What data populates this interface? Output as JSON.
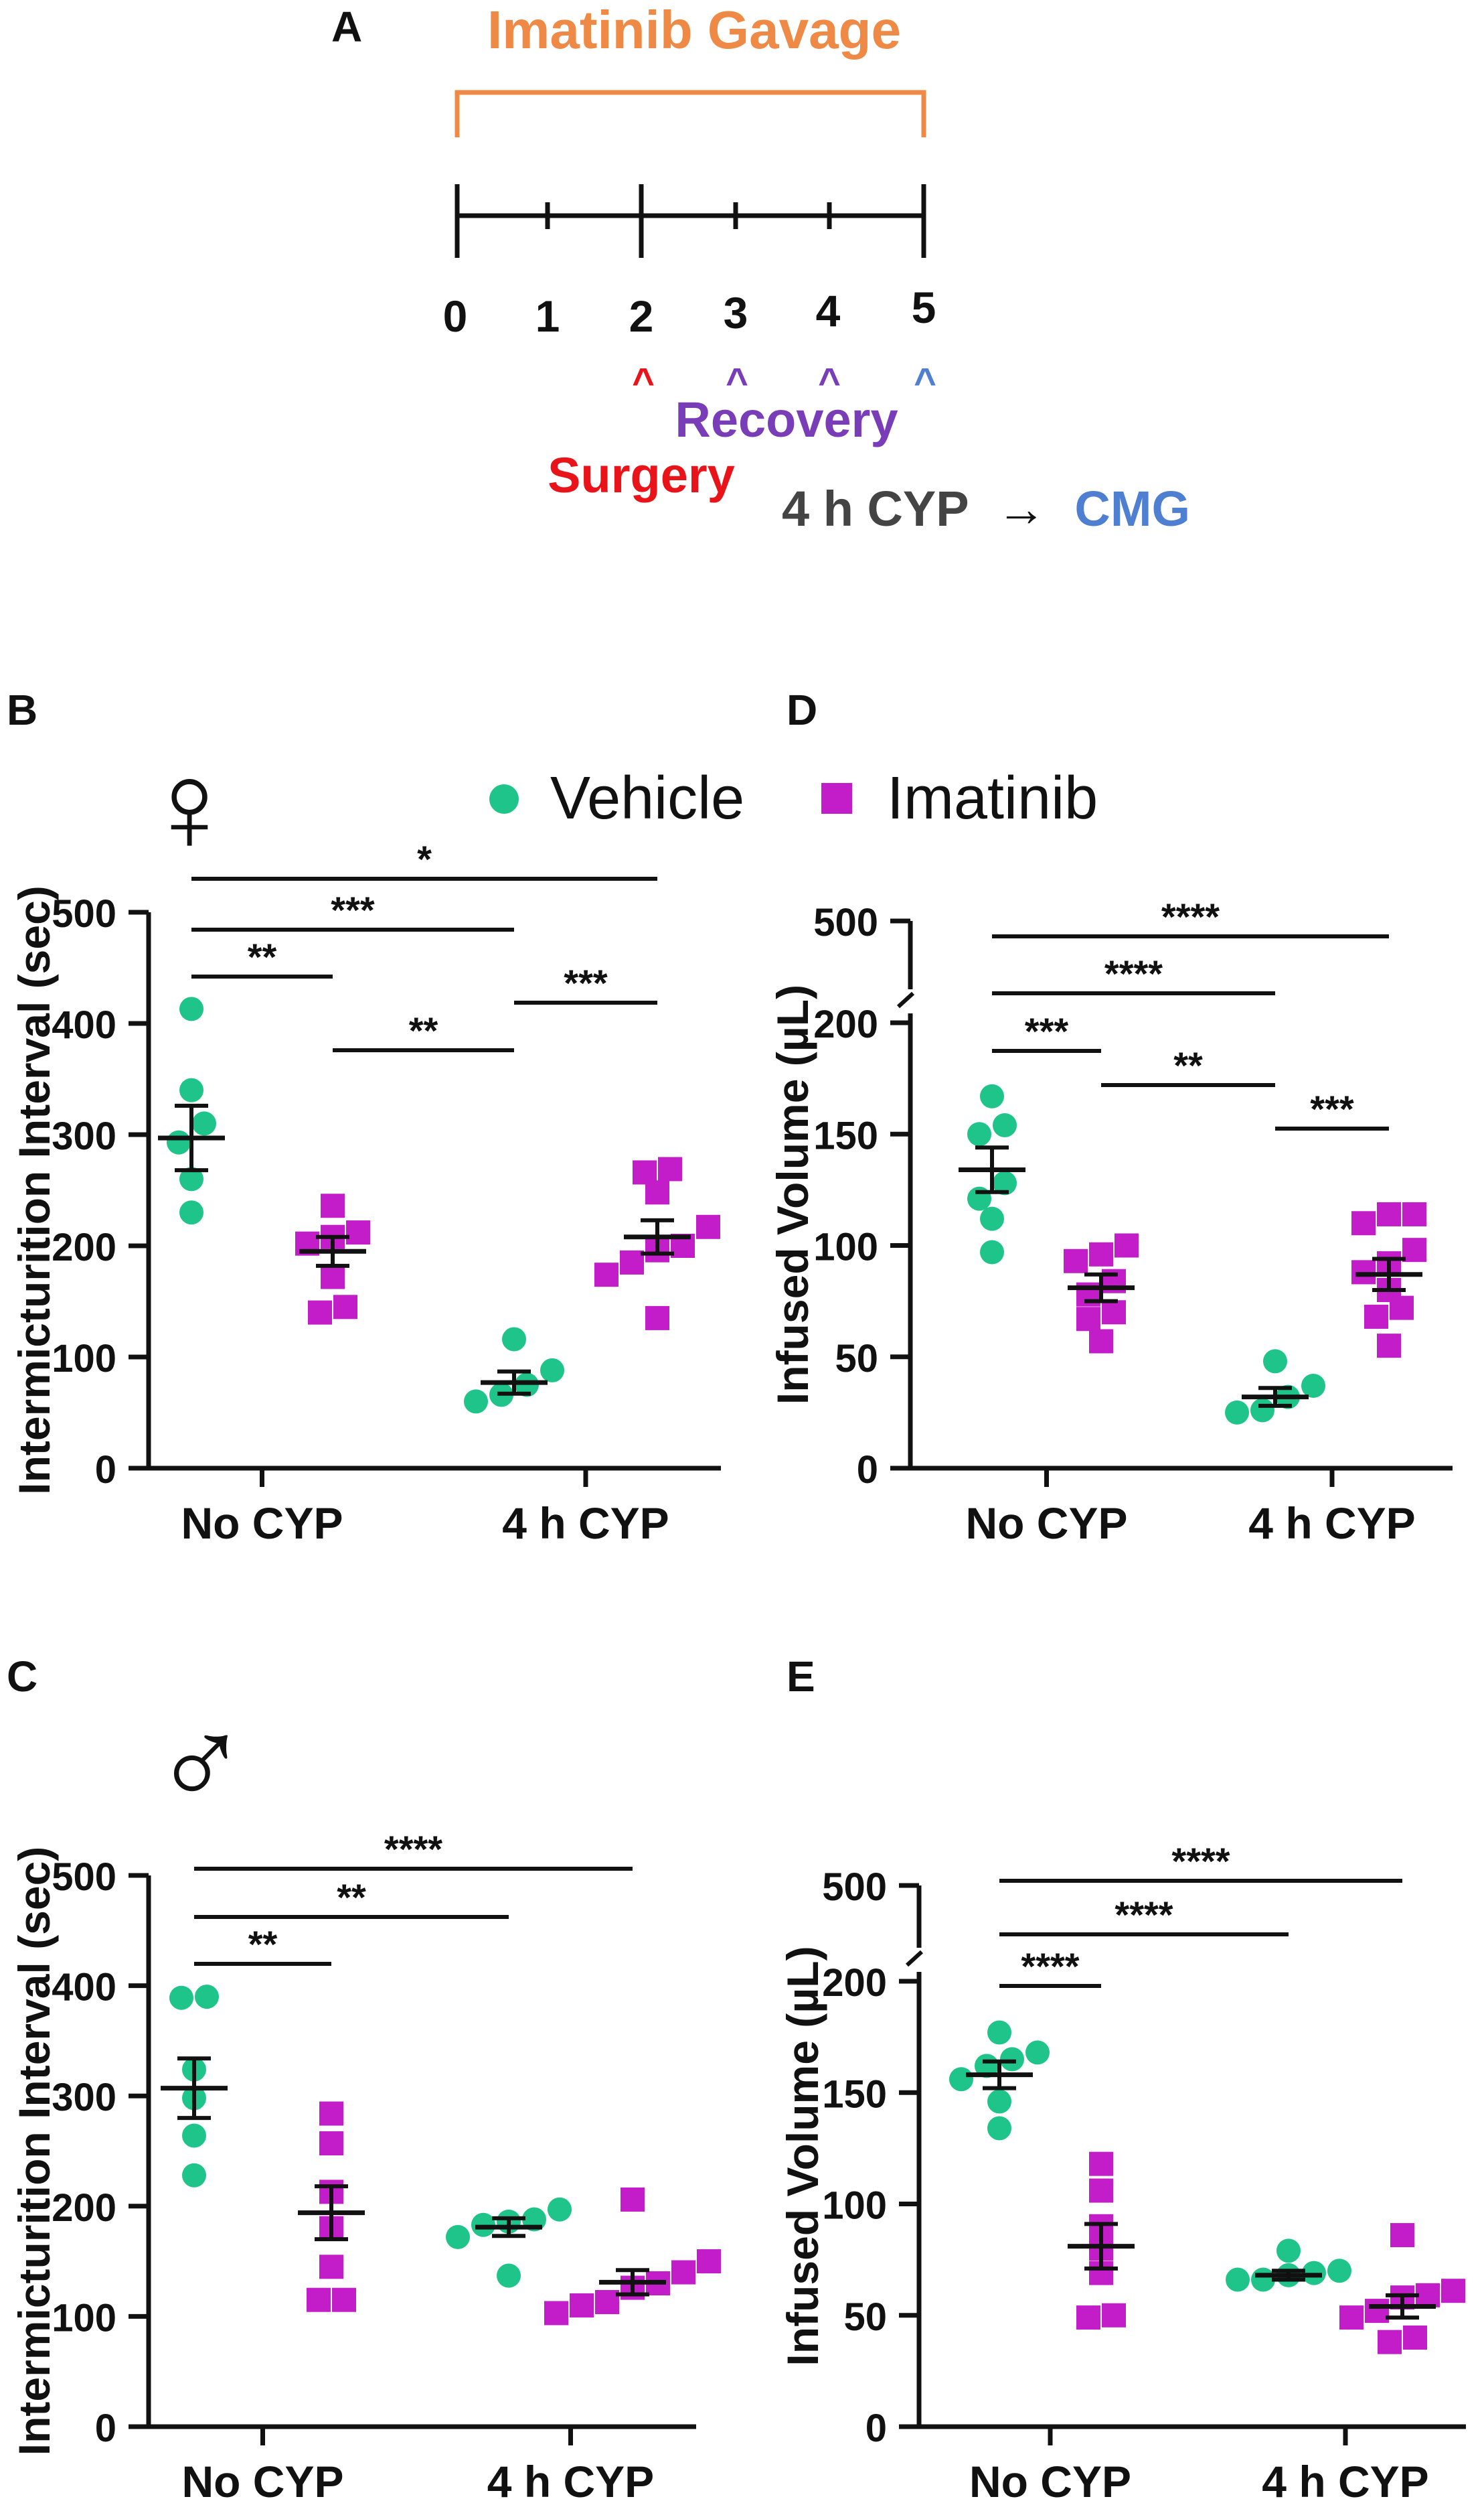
{
  "figure_type": "multi-panel scientific figure",
  "colors": {
    "vehicle": "#1FC48A",
    "imatinib": "#C21DC8",
    "gavage": "#EE8A45",
    "surgery": "#E8141A",
    "recovery": "#7A3DB8",
    "cmg": "#4F7FD0",
    "cyp_text": "#444444",
    "axis": "#111111"
  },
  "legend": {
    "vehicle": "Vehicle",
    "imatinib": "Imatinib"
  },
  "symbols": {
    "female": "♀",
    "male": "♂"
  },
  "panel_a": {
    "letter": "A",
    "title": "Imatinib Gavage",
    "days": [
      "0",
      "1",
      "2",
      "3",
      "4",
      "5"
    ],
    "caret": "^",
    "surgery": "Surgery",
    "recovery": "Recovery",
    "cyp": "4 h CYP",
    "arrow": "→",
    "cmg": "CMG"
  },
  "chart_data": [
    {
      "panel": "B",
      "type": "scatter",
      "sex": "female",
      "title": "",
      "xlabel": "",
      "ylabel": "Intermicturition Interval (sec)",
      "categories": [
        "No CYP",
        "4 h CYP"
      ],
      "ylim": [
        0,
        500
      ],
      "yticks": [
        0,
        100,
        200,
        300,
        400,
        500
      ],
      "axis_break": false,
      "series": [
        {
          "name": "Vehicle",
          "groups": [
            {
              "points": [
                413,
                340,
                310,
                293,
                260,
                230
              ],
              "mean": 297,
              "sem": 29
            },
            {
              "points": [
                116,
                88,
                75,
                66,
                60
              ],
              "mean": 77,
              "sem": 10
            }
          ]
        },
        {
          "name": "Imatinib",
          "groups": [
            {
              "points": [
                236,
                212,
                208,
                202,
                172,
                145,
                140
              ],
              "mean": 195,
              "sem": 13
            },
            {
              "points": [
                269,
                266,
                248,
                217,
                200,
                196,
                185,
                174,
                135
              ],
              "mean": 208,
              "sem": 15
            }
          ]
        }
      ],
      "significance": [
        {
          "from": "No CYP · Vehicle",
          "to": "4 h CYP · Imatinib",
          "label": "*"
        },
        {
          "from": "No CYP · Vehicle",
          "to": "4 h CYP · Vehicle",
          "label": "***"
        },
        {
          "from": "No CYP · Vehicle",
          "to": "No CYP · Imatinib",
          "label": "**"
        },
        {
          "from": "No CYP · Imatinib",
          "to": "4 h CYP · Vehicle",
          "label": "**"
        },
        {
          "from": "4 h CYP · Vehicle",
          "to": "4 h CYP · Imatinib",
          "label": "***"
        }
      ]
    },
    {
      "panel": "D",
      "type": "scatter",
      "sex": "female",
      "title": "",
      "xlabel": "",
      "ylabel": "Infused Volume (µL)",
      "categories": [
        "No CYP",
        "4 h CYP"
      ],
      "ylim": [
        0,
        200
      ],
      "yticks": [
        0,
        50,
        100,
        150,
        200
      ],
      "axis_break": true,
      "break_label": "500",
      "series": [
        {
          "name": "Vehicle",
          "groups": [
            {
              "points": [
                167,
                154,
                150,
                128,
                121,
                112,
                97
              ],
              "mean": 134,
              "sem": 10
            },
            {
              "points": [
                48,
                37,
                32,
                26,
                25
              ],
              "mean": 32,
              "sem": 4
            }
          ]
        },
        {
          "name": "Imatinib",
          "groups": [
            {
              "points": [
                100,
                96,
                93,
                84,
                78,
                70,
                67,
                57
              ],
              "mean": 81,
              "sem": 6
            },
            {
              "points": [
                114,
                114,
                110,
                98,
                92,
                88,
                80,
                72,
                68,
                55
              ],
              "mean": 87,
              "sem": 7
            }
          ]
        }
      ],
      "significance": [
        {
          "from": "No CYP · Vehicle",
          "to": "4 h CYP · Imatinib",
          "label": "****"
        },
        {
          "from": "No CYP · Vehicle",
          "to": "4 h CYP · Vehicle",
          "label": "****"
        },
        {
          "from": "No CYP · Vehicle",
          "to": "No CYP · Imatinib",
          "label": "***"
        },
        {
          "from": "No CYP · Imatinib",
          "to": "4 h CYP · Vehicle",
          "label": "**"
        },
        {
          "from": "4 h CYP · Vehicle",
          "to": "4 h CYP · Imatinib",
          "label": "***"
        }
      ]
    },
    {
      "panel": "C",
      "type": "scatter",
      "sex": "male",
      "title": "",
      "xlabel": "",
      "ylabel": "Intermicturition Interval (sec)",
      "categories": [
        "No CYP",
        "4 h CYP"
      ],
      "ylim": [
        0,
        500
      ],
      "yticks": [
        0,
        100,
        200,
        300,
        400,
        500
      ],
      "axis_break": false,
      "series": [
        {
          "name": "Vehicle",
          "groups": [
            {
              "points": [
                390,
                389,
                324,
                298,
                264,
                228
              ],
              "mean": 307,
              "sem": 27
            },
            {
              "points": [
                197,
                188,
                186,
                183,
                172,
                137
              ],
              "mean": 181,
              "sem": 8
            }
          ]
        },
        {
          "name": "Imatinib",
          "groups": [
            {
              "points": [
                284,
                257,
                213,
                180,
                145,
                115,
                115
              ],
              "mean": 194,
              "sem": 24
            },
            {
              "points": [
                206,
                150,
                140,
                130,
                126,
                113,
                110,
                103
              ],
              "mean": 131,
              "sem": 11
            }
          ]
        }
      ],
      "significance": [
        {
          "from": "No CYP · Vehicle",
          "to": "4 h CYP · Imatinib",
          "label": "****"
        },
        {
          "from": "No CYP · Vehicle",
          "to": "4 h CYP · Vehicle",
          "label": "**"
        },
        {
          "from": "No CYP · Vehicle",
          "to": "No CYP · Imatinib",
          "label": "**"
        }
      ]
    },
    {
      "panel": "E",
      "type": "scatter",
      "sex": "male",
      "title": "",
      "xlabel": "",
      "ylabel": "Infused Volume (µL)",
      "categories": [
        "No CYP",
        "4 h CYP"
      ],
      "ylim": [
        0,
        200
      ],
      "yticks": [
        0,
        50,
        100,
        150,
        200
      ],
      "axis_break": true,
      "break_label": "500",
      "series": [
        {
          "name": "Vehicle",
          "groups": [
            {
              "points": [
                177,
                168,
                165,
                162,
                156,
                146,
                134
              ],
              "mean": 158,
              "sem": 6
            },
            {
              "points": [
                79,
                70,
                69,
                68,
                66,
                66
              ],
              "mean": 68,
              "sem": 2
            }
          ]
        },
        {
          "name": "Imatinib",
          "groups": [
            {
              "points": [
                118,
                106,
                90,
                80,
                69,
                50,
                49
              ],
              "mean": 81,
              "sem": 10
            },
            {
              "points": [
                86,
                61,
                59,
                58,
                52,
                49,
                40,
                38
              ],
              "mean": 54,
              "sem": 5
            }
          ]
        }
      ],
      "significance": [
        {
          "from": "No CYP · Vehicle",
          "to": "4 h CYP · Imatinib",
          "label": "****"
        },
        {
          "from": "No CYP · Vehicle",
          "to": "4 h CYP · Vehicle",
          "label": "****"
        },
        {
          "from": "No CYP · Vehicle",
          "to": "No CYP · Imatinib",
          "label": "****"
        }
      ]
    }
  ]
}
